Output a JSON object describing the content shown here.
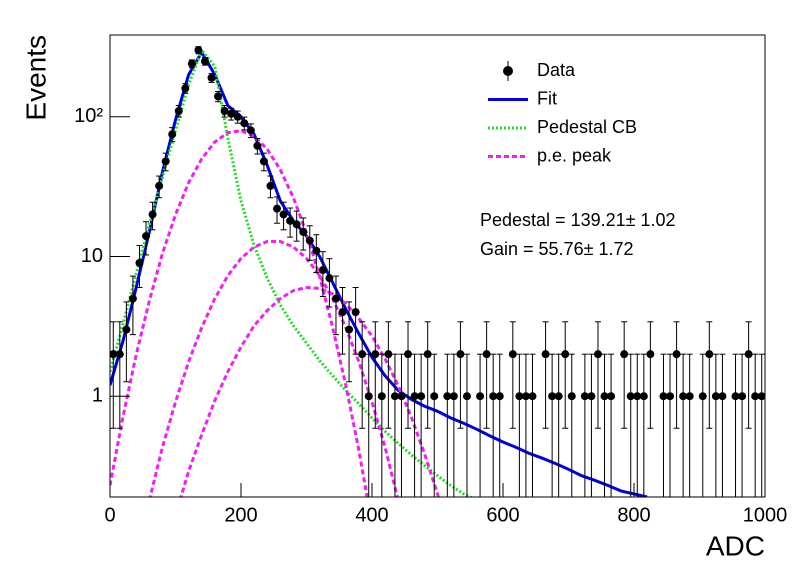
{
  "chart_data": {
    "type": "histogram-fit",
    "xlabel": "ADC",
    "ylabel": "Events",
    "xlim": [
      0,
      1000
    ],
    "xticks": [
      0,
      200,
      400,
      600,
      800,
      1000
    ],
    "ylim": [
      0.19,
      385
    ],
    "log_y": true,
    "yticks": [
      {
        "value": 1,
        "label": "1"
      },
      {
        "value": 10,
        "label": "10"
      },
      {
        "value": 100,
        "label": "10²"
      }
    ],
    "annotations": [
      "Pedestal = 139.21± 1.02",
      "Gain = 55.76± 1.72"
    ],
    "series": [
      {
        "name": "Data",
        "color": "#000000",
        "x": [
          5,
          15,
          25,
          35,
          45,
          55,
          65,
          75,
          85,
          95,
          105,
          115,
          125,
          135,
          145,
          155,
          165,
          175,
          185,
          195,
          205,
          215,
          225,
          235,
          245,
          255,
          265,
          275,
          285,
          295,
          305,
          315,
          325,
          335,
          345,
          355,
          365,
          375,
          385,
          395,
          405,
          415,
          425,
          435,
          445,
          455,
          465,
          475,
          485,
          495,
          505,
          515,
          525,
          535,
          545,
          555,
          565,
          575,
          585,
          595,
          605,
          615,
          625,
          635,
          645,
          655,
          665,
          675,
          685,
          695,
          705,
          715,
          725,
          735,
          745,
          755,
          765,
          775,
          785,
          795,
          805,
          815,
          825,
          835,
          845,
          855,
          865,
          875,
          885,
          895,
          905,
          915,
          925,
          935,
          945,
          955,
          965,
          975,
          985,
          995
        ],
        "values": [
          2,
          2,
          3,
          5,
          9,
          14,
          20,
          32,
          48,
          75,
          110,
          160,
          240,
          300,
          250,
          190,
          140,
          110,
          105,
          100,
          90,
          80,
          62,
          48,
          32,
          22,
          20,
          18,
          17,
          15,
          13,
          11,
          8,
          7,
          5,
          4,
          3,
          4,
          2,
          1,
          2,
          1,
          2,
          1,
          1,
          2,
          1,
          1,
          2,
          1,
          null,
          1,
          1,
          2,
          1,
          null,
          1,
          2,
          1,
          1,
          null,
          2,
          1,
          1,
          1,
          null,
          2,
          1,
          1,
          2,
          1,
          null,
          1,
          1,
          2,
          1,
          1,
          null,
          2,
          1,
          1,
          1,
          2,
          null,
          1,
          1,
          2,
          1,
          1,
          null,
          1,
          2,
          1,
          1,
          null,
          1,
          1,
          2,
          1,
          1
        ],
        "errors": [
          1.41,
          1.41,
          1.73,
          2.24,
          3,
          3.74,
          4.47,
          5.66,
          6.93,
          8.66,
          10.49,
          12.65,
          15.49,
          17.32,
          15.81,
          13.78,
          11.83,
          10.49,
          10.25,
          10,
          9.49,
          8.94,
          7.87,
          6.93,
          5.66,
          4.69,
          4.47,
          4.24,
          4.12,
          3.87,
          3.61,
          3.32,
          2.83,
          2.65,
          2.24,
          2,
          1.73,
          2,
          1.41,
          1,
          1.41,
          1,
          1.41,
          1,
          1,
          1.41,
          1,
          1,
          1.41,
          1,
          null,
          1,
          1,
          1.41,
          1,
          null,
          1,
          1.41,
          1,
          1,
          null,
          1.41,
          1,
          1,
          1,
          null,
          1.41,
          1,
          1,
          1.41,
          1,
          null,
          1,
          1,
          1.41,
          1,
          1,
          null,
          1.41,
          1,
          1,
          1,
          1.41,
          null,
          1,
          1,
          1.41,
          1,
          1,
          null,
          1,
          1.41,
          1,
          1,
          null,
          1,
          1,
          1.41,
          1,
          1
        ]
      },
      {
        "name": "Fit",
        "color": "#0000e0",
        "style": "solid",
        "x": [
          0,
          20,
          40,
          60,
          80,
          100,
          120,
          140,
          160,
          180,
          200,
          220,
          240,
          260,
          280,
          300,
          320,
          340,
          360,
          380,
          400,
          420,
          440,
          460,
          480,
          500,
          520,
          540,
          560,
          580,
          600,
          620,
          640,
          660,
          680,
          700,
          720,
          740,
          760,
          780,
          800,
          820
        ],
        "values": [
          1.2,
          2.5,
          6,
          15,
          40,
          95,
          200,
          290,
          200,
          120,
          100,
          75,
          45,
          25,
          18,
          14,
          10,
          6.5,
          4.2,
          2.8,
          1.9,
          1.4,
          1.1,
          0.95,
          0.85,
          0.78,
          0.7,
          0.64,
          0.58,
          0.52,
          0.47,
          0.43,
          0.39,
          0.36,
          0.33,
          0.3,
          0.27,
          0.25,
          0.23,
          0.21,
          0.2,
          0.19
        ]
      },
      {
        "name": "Pedestal CB",
        "color": "#22dd22",
        "style": "dotted",
        "x": [
          0,
          20,
          40,
          60,
          80,
          100,
          120,
          140,
          160,
          180,
          200,
          220,
          240,
          260,
          280,
          300,
          320,
          340,
          360,
          380,
          400,
          420,
          440,
          460,
          480,
          500,
          520,
          540,
          560
        ],
        "values": [
          1.5,
          3.3,
          7.5,
          17,
          37,
          80,
          170,
          300,
          230,
          70,
          25,
          12,
          7,
          4.5,
          3.2,
          2.4,
          1.8,
          1.4,
          1.1,
          0.88,
          0.7,
          0.56,
          0.46,
          0.38,
          0.32,
          0.27,
          0.23,
          0.2,
          0.18
        ]
      },
      {
        "name": "p.e. peak",
        "color": "#ee22ee",
        "style": "dashed",
        "components": [
          {
            "x": [
              0,
              20,
              40,
              60,
              80,
              100,
              120,
              140,
              160,
              180,
              200,
              220,
              240,
              260,
              280,
              300,
              320,
              340,
              360,
              380,
              400
            ],
            "values": [
              0.23,
              0.72,
              1.98,
              4.8,
              10.5,
              19.9,
              33.7,
              50,
              66,
              77,
              79.7,
              72.6,
              58.6,
              41.8,
              26.3,
              14.7,
              7.2,
              3.1,
              1.2,
              0.41,
              0.12
            ]
          },
          {
            "x": [
              60,
              80,
              100,
              120,
              140,
              160,
              180,
              200,
              220,
              240,
              260,
              280,
              300,
              320,
              340,
              360,
              380,
              400,
              420,
              440
            ],
            "values": [
              0.18,
              0.43,
              0.91,
              1.76,
              3.1,
              5,
              7.3,
              9.7,
              11.7,
              12.8,
              12.8,
              11.7,
              9.7,
              7.3,
              5,
              3.1,
              1.76,
              0.91,
              0.43,
              0.18
            ]
          },
          {
            "x": [
              100,
              120,
              140,
              160,
              180,
              200,
              220,
              240,
              260,
              280,
              300,
              320,
              340,
              360,
              380,
              400,
              420,
              440,
              460,
              480,
              500,
              520
            ],
            "values": [
              0.14,
              0.29,
              0.53,
              0.93,
              1.5,
              2.25,
              3.2,
              4.1,
              5,
              5.7,
              6,
              5.9,
              5.4,
              4.6,
              3.6,
              2.7,
              1.85,
              1.19,
              0.71,
              0.39,
              0.2,
              0.1
            ]
          }
        ]
      }
    ]
  }
}
